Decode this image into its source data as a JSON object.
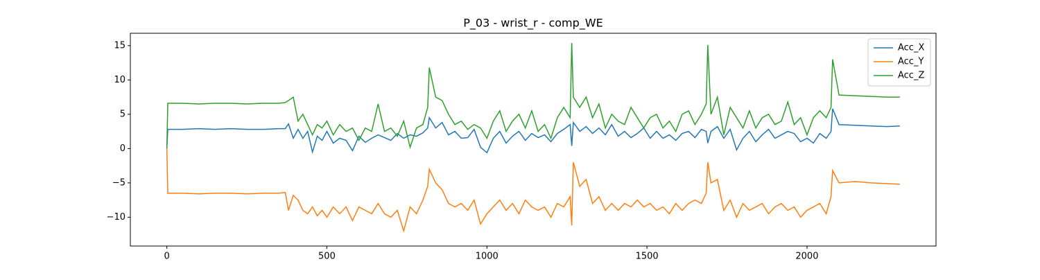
{
  "chart_data": {
    "type": "line",
    "title": "P_03 - wrist_r - comp_WE",
    "x": [
      0,
      3,
      50,
      100,
      150,
      200,
      250,
      300,
      350,
      370,
      380,
      395,
      410,
      425,
      440,
      455,
      470,
      485,
      500,
      520,
      540,
      560,
      580,
      600,
      620,
      640,
      660,
      680,
      700,
      720,
      740,
      760,
      780,
      800,
      815,
      820,
      840,
      860,
      880,
      900,
      920,
      940,
      960,
      980,
      1000,
      1020,
      1040,
      1060,
      1080,
      1100,
      1120,
      1140,
      1160,
      1180,
      1200,
      1220,
      1240,
      1260,
      1265,
      1270,
      1290,
      1310,
      1330,
      1350,
      1370,
      1390,
      1410,
      1430,
      1450,
      1470,
      1490,
      1510,
      1530,
      1550,
      1570,
      1590,
      1610,
      1630,
      1650,
      1670,
      1685,
      1690,
      1700,
      1720,
      1740,
      1760,
      1780,
      1800,
      1820,
      1840,
      1860,
      1880,
      1900,
      1920,
      1940,
      1960,
      1980,
      2000,
      2020,
      2040,
      2060,
      2075,
      2080,
      2100,
      2150,
      2200,
      2250,
      2290
    ],
    "series": [
      {
        "name": "Acc_X",
        "color": "#1f77b4",
        "values": [
          0,
          2.8,
          2.8,
          2.9,
          2.8,
          2.9,
          2.8,
          2.8,
          2.9,
          2.9,
          3.6,
          1.5,
          2.8,
          1.5,
          2.5,
          -0.5,
          1.8,
          1.2,
          2.5,
          0.8,
          1.5,
          1.2,
          -0.3,
          1.8,
          0.9,
          1.5,
          2.0,
          1.6,
          1.2,
          2.2,
          1.5,
          2.0,
          1.8,
          2.3,
          3.0,
          4.5,
          3.0,
          3.8,
          2.0,
          2.5,
          1.5,
          1.6,
          2.8,
          0.2,
          -0.6,
          1.5,
          2.5,
          0.8,
          1.8,
          2.5,
          1.2,
          2.2,
          1.6,
          2.0,
          1.0,
          2.2,
          2.8,
          3.5,
          0.4,
          3.8,
          2.5,
          3.2,
          2.2,
          3.0,
          2.0,
          3.5,
          1.8,
          2.5,
          1.6,
          2.2,
          3.0,
          1.5,
          2.5,
          1.5,
          2.0,
          1.2,
          2.2,
          2.5,
          1.6,
          2.8,
          2.5,
          0.8,
          2.5,
          3.2,
          1.5,
          2.8,
          -0.2,
          1.5,
          2.5,
          1.0,
          2.0,
          2.8,
          1.5,
          2.0,
          2.5,
          2.2,
          1.0,
          1.5,
          0.8,
          2.2,
          1.5,
          2.5,
          5.8,
          3.5,
          3.4,
          3.3,
          3.2,
          3.3
        ]
      },
      {
        "name": "Acc_Y",
        "color": "#ff7f0e",
        "values": [
          0,
          -6.5,
          -6.5,
          -6.6,
          -6.5,
          -6.5,
          -6.6,
          -6.5,
          -6.5,
          -6.4,
          -9.0,
          -6.8,
          -7.5,
          -9.0,
          -9.5,
          -8.5,
          -9.8,
          -9.0,
          -10.0,
          -8.5,
          -9.5,
          -8.5,
          -10.5,
          -8.5,
          -9.0,
          -9.5,
          -8.0,
          -9.5,
          -10.0,
          -9.0,
          -12.0,
          -8.5,
          -9.5,
          -7.5,
          -5.5,
          -3.0,
          -5.0,
          -6.0,
          -8.0,
          -8.5,
          -8.0,
          -9.0,
          -7.5,
          -11.0,
          -9.5,
          -8.5,
          -7.5,
          -9.0,
          -8.0,
          -9.5,
          -7.5,
          -8.5,
          -9.0,
          -8.5,
          -10.0,
          -8.0,
          -8.5,
          -7.0,
          -11.2,
          -2.0,
          -5.5,
          -4.5,
          -8.0,
          -7.0,
          -9.0,
          -8.0,
          -9.0,
          -8.0,
          -8.5,
          -7.5,
          -8.5,
          -8.0,
          -9.0,
          -8.5,
          -9.5,
          -8.0,
          -9.0,
          -8.0,
          -7.5,
          -8.0,
          -6.5,
          -2.0,
          -5.0,
          -4.5,
          -9.0,
          -7.5,
          -10.0,
          -8.0,
          -9.0,
          -8.5,
          -8.0,
          -9.5,
          -8.5,
          -8.0,
          -9.0,
          -8.5,
          -10.0,
          -9.0,
          -8.5,
          -8.0,
          -9.5,
          -7.0,
          -3.2,
          -5.0,
          -4.8,
          -5.0,
          -5.1,
          -5.2
        ]
      },
      {
        "name": "Acc_Z",
        "color": "#2ca02c",
        "values": [
          0,
          6.6,
          6.6,
          6.5,
          6.6,
          6.6,
          6.5,
          6.6,
          6.6,
          6.7,
          7.0,
          7.5,
          4.0,
          5.0,
          3.5,
          2.0,
          3.5,
          3.0,
          4.0,
          2.0,
          3.5,
          2.5,
          3.0,
          1.2,
          3.0,
          2.5,
          6.5,
          2.5,
          3.0,
          1.8,
          4.0,
          0.2,
          3.0,
          3.5,
          6.0,
          11.8,
          7.5,
          7.0,
          5.0,
          3.5,
          4.0,
          2.8,
          3.5,
          3.0,
          1.5,
          4.0,
          5.5,
          2.5,
          4.0,
          5.0,
          3.0,
          5.5,
          2.5,
          3.5,
          1.5,
          4.5,
          6.0,
          4.5,
          15.4,
          7.5,
          6.0,
          7.5,
          4.5,
          6.5,
          3.0,
          5.0,
          4.0,
          3.5,
          6.0,
          4.5,
          3.0,
          4.5,
          5.0,
          3.0,
          4.0,
          2.5,
          5.0,
          5.5,
          3.5,
          5.0,
          6.5,
          15.1,
          5.0,
          7.5,
          2.0,
          6.0,
          4.5,
          3.0,
          5.5,
          3.0,
          4.5,
          5.0,
          3.5,
          4.0,
          6.8,
          3.5,
          4.5,
          2.0,
          4.5,
          5.5,
          4.5,
          6.0,
          13.0,
          7.8,
          7.7,
          7.6,
          7.5,
          7.5
        ]
      }
    ],
    "xlim": [
      -114,
      2403
    ],
    "xticks": [
      0,
      500,
      1000,
      1500,
      2000
    ],
    "ylim": [
      -14.2,
      16.8
    ],
    "yticks": [
      {
        "value": -10,
        "label": "−10"
      },
      {
        "value": -5,
        "label": "−5"
      },
      0,
      5,
      10,
      15
    ],
    "legend": "upper right"
  }
}
